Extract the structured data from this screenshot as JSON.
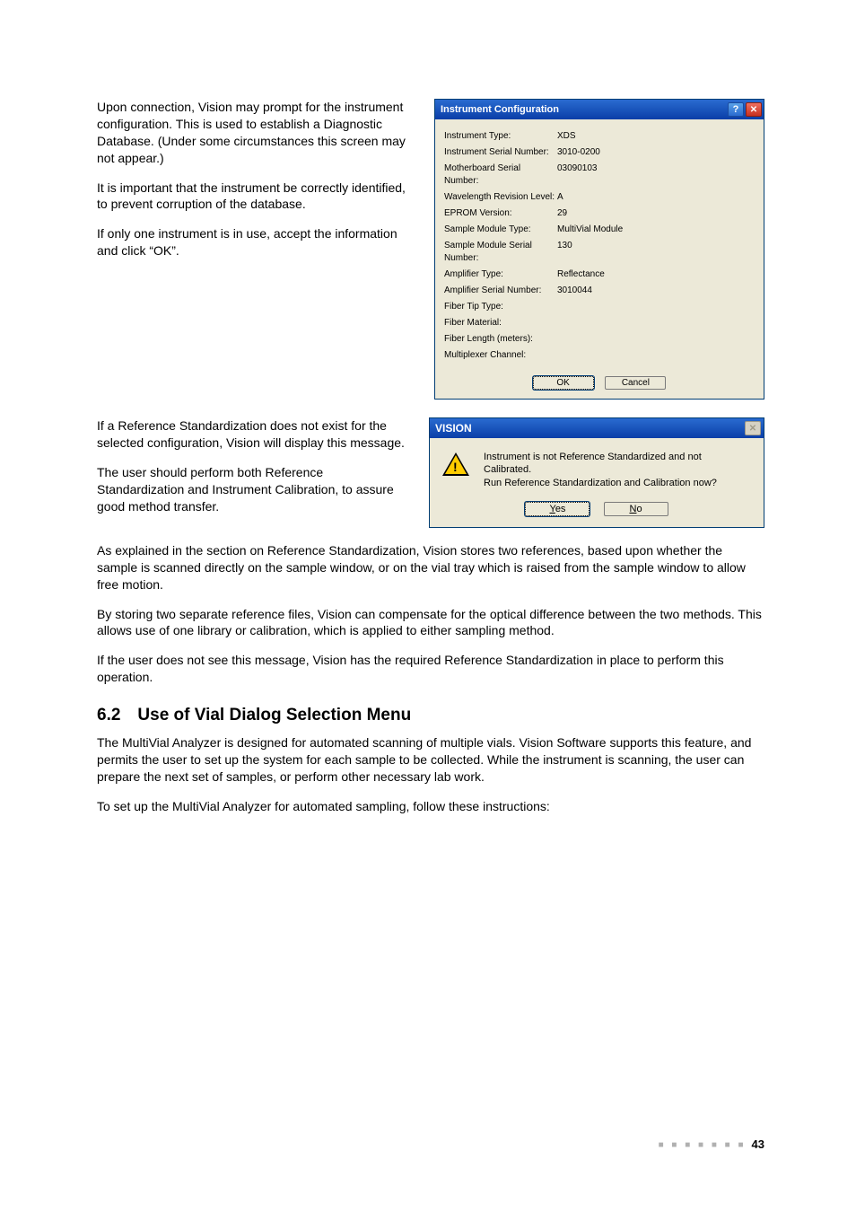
{
  "para1": "Upon connection, Vision may prompt for the instrument configuration. This is used to establish a Diagnostic Database. (Under some circumstances this screen may not appear.)",
  "para2": "It is important that the instrument be correctly identified, to prevent corruption of the database.",
  "para3": "If only one instrument is in use, accept the information and click “OK”.",
  "para4": "If a Reference Standardization does not exist for the selected configuration, Vision will display this message.",
  "para5": "The user should perform both Reference Standardization and Instrument Calibration, to assure good method transfer.",
  "para6": "As explained in the section on Reference Standardization, Vision stores two references, based upon whether the sample is scanned directly on the sample window, or on the vial tray which is raised from the sample window to allow free motion.",
  "para7": "By storing two separate reference files, Vision can compensate for the optical difference between the two methods. This allows use of one library or calibration, which is applied to either sampling method.",
  "para8": "If the user does not see this message, Vision has the required Reference Standardization in place to perform this operation.",
  "section_heading": "6.2 Use of Vial Dialog Selection Menu",
  "para9": "The MultiVial Analyzer is designed for automated scanning of multiple vials. Vision Software supports this feature, and permits the user to set up the system for each sample to be collected. While the instrument is scanning, the user can prepare the next set of samples, or perform other necessary lab work.",
  "para10": "To set up the MultiVial Analyzer for automated sampling, follow these instructions:",
  "page_number": "43",
  "config_dialog": {
    "title": "Instrument Configuration",
    "help_glyph": "?",
    "close_glyph": "✕",
    "fields": [
      {
        "label": "Instrument Type:",
        "value": "XDS"
      },
      {
        "label": "Instrument Serial Number:",
        "value": "3010-0200"
      },
      {
        "label": "Motherboard Serial Number:",
        "value": "03090103"
      },
      {
        "label": "Wavelength Revision Level:",
        "value": "A"
      },
      {
        "label": "EPROM Version:",
        "value": "29"
      },
      {
        "label": "Sample Module Type:",
        "value": "MultiVial Module"
      },
      {
        "label": "Sample Module Serial Number:",
        "value": "130"
      },
      {
        "label": "Amplifier Type:",
        "value": "Reflectance"
      },
      {
        "label": "Amplifier Serial Number:",
        "value": "3010044"
      },
      {
        "label": "Fiber Tip Type:",
        "value": ""
      },
      {
        "label": "Fiber Material:",
        "value": ""
      },
      {
        "label": "Fiber Length (meters):",
        "value": ""
      },
      {
        "label": "Multiplexer Channel:",
        "value": ""
      }
    ],
    "ok_label": "OK",
    "cancel_label": "Cancel"
  },
  "vision_dialog": {
    "title": "VISION",
    "close_glyph": "✕",
    "line1": "Instrument is not Reference Standardized and not Calibrated.",
    "line2": "Run Reference Standardization and Calibration now?",
    "yes_u": "Y",
    "yes_rest": "es",
    "no_u": "N",
    "no_rest": "o",
    "bang": "!"
  },
  "colors": {
    "page_bg": "#ffffff",
    "dialog_bg": "#ece9d8",
    "titlebar_grad_top": "#2a6bd0",
    "titlebar_grad_bottom": "#0a3ea8",
    "warn_yellow": "#ffcc00"
  }
}
